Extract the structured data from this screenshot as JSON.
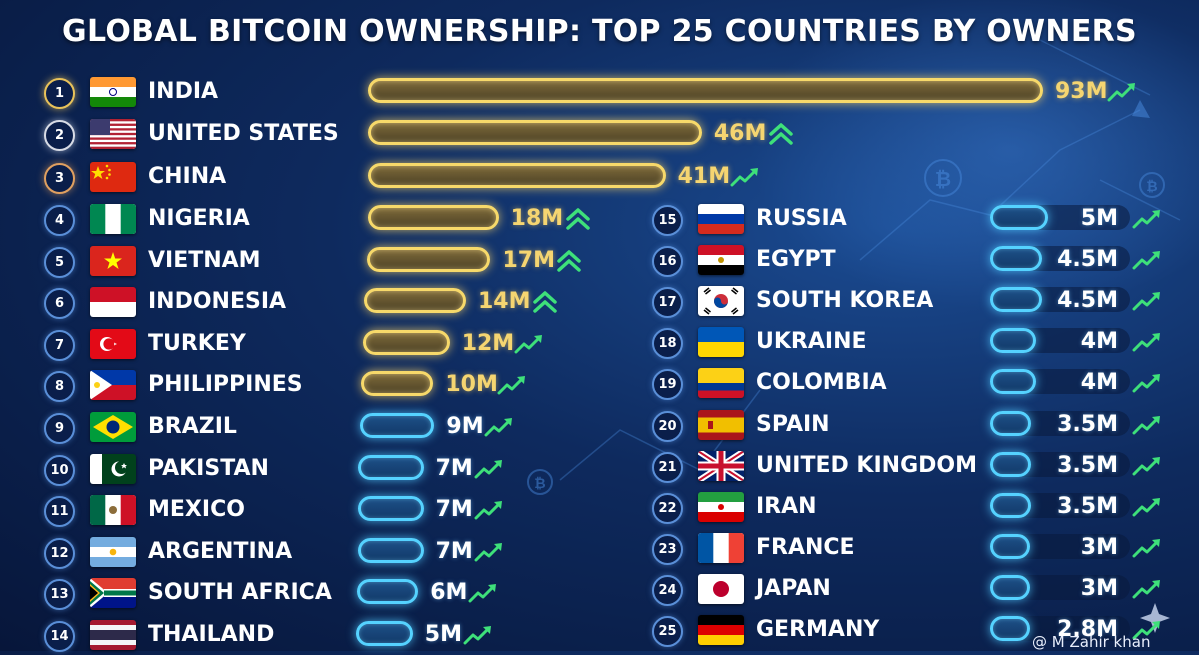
{
  "chart_data": {
    "type": "bar",
    "title": "GLOBAL BITCOIN OWNERSHIP: TOP 25 COUNTRIES BY OWNERS",
    "unit": "M",
    "xlim": [
      0,
      93
    ],
    "legend": "none",
    "grid": false,
    "rows": [
      {
        "rank": "1",
        "country": "INDIA",
        "flag": "india-flag",
        "value": 93,
        "label": "93M",
        "trend": "rising"
      },
      {
        "rank": "2",
        "country": "UNITED STATES",
        "flag": "usa-flag",
        "value": 46,
        "label": "46M",
        "trend": "double-up"
      },
      {
        "rank": "3",
        "country": "CHINA",
        "flag": "china-flag",
        "value": 41,
        "label": "41M",
        "trend": "rising"
      },
      {
        "rank": "4",
        "country": "NIGERIA",
        "flag": "nigeria-flag",
        "value": 18,
        "label": "18M",
        "trend": "double-up"
      },
      {
        "rank": "5",
        "country": "VIETNAM",
        "flag": "vietnam-flag",
        "value": 17,
        "label": "17M",
        "trend": "double-up"
      },
      {
        "rank": "6",
        "country": "INDONESIA",
        "flag": "indonesia-flag",
        "value": 14,
        "label": "14M",
        "trend": "double-up"
      },
      {
        "rank": "7",
        "country": "TURKEY",
        "flag": "turkey-flag",
        "value": 12,
        "label": "12M",
        "trend": "rising"
      },
      {
        "rank": "8",
        "country": "PHILIPPINES",
        "flag": "philippines-flag",
        "value": 10,
        "label": "10M",
        "trend": "rising"
      },
      {
        "rank": "9",
        "country": "BRAZIL",
        "flag": "brazil-flag",
        "value": 9,
        "label": "9M",
        "trend": "rising"
      },
      {
        "rank": "10",
        "country": "PAKISTAN",
        "flag": "pakistan-flag",
        "value": 7,
        "label": "7M",
        "trend": "rising"
      },
      {
        "rank": "11",
        "country": "MEXICO",
        "flag": "mexico-flag",
        "value": 7,
        "label": "7M",
        "trend": "rising"
      },
      {
        "rank": "12",
        "country": "ARGENTINA",
        "flag": "argentina-flag",
        "value": 7,
        "label": "7M",
        "trend": "rising"
      },
      {
        "rank": "13",
        "country": "SOUTH AFRICA",
        "flag": "south-africa-flag",
        "value": 6,
        "label": "6M",
        "trend": "rising"
      },
      {
        "rank": "14",
        "country": "THAILAND",
        "flag": "thailand-flag",
        "value": 5,
        "label": "5M",
        "trend": "rising"
      },
      {
        "rank": "15",
        "country": "RUSSIA",
        "flag": "russia-flag",
        "value": 5,
        "label": "5M",
        "trend": "rising"
      },
      {
        "rank": "16",
        "country": "EGYPT",
        "flag": "egypt-flag",
        "value": 4.5,
        "label": "4.5M",
        "trend": "rising"
      },
      {
        "rank": "17",
        "country": "SOUTH KOREA",
        "flag": "south-korea-flag",
        "value": 4.5,
        "label": "4.5M",
        "trend": "rising"
      },
      {
        "rank": "18",
        "country": "UKRAINE",
        "flag": "ukraine-flag",
        "value": 4,
        "label": "4M",
        "trend": "rising"
      },
      {
        "rank": "19",
        "country": "COLOMBIA",
        "flag": "colombia-flag",
        "value": 4,
        "label": "4M",
        "trend": "rising"
      },
      {
        "rank": "20",
        "country": "SPAIN",
        "flag": "spain-flag",
        "value": 3.5,
        "label": "3.5M",
        "trend": "rising"
      },
      {
        "rank": "21",
        "country": "UNITED KINGDOM",
        "flag": "uk-flag",
        "value": 3.5,
        "label": "3.5M",
        "trend": "rising"
      },
      {
        "rank": "22",
        "country": "IRAN",
        "flag": "iran-flag",
        "value": 3.5,
        "label": "3.5M",
        "trend": "rising"
      },
      {
        "rank": "23",
        "country": "FRANCE",
        "flag": "france-flag",
        "value": 3,
        "label": "3M",
        "trend": "rising"
      },
      {
        "rank": "24",
        "country": "JAPAN",
        "flag": "japan-flag",
        "value": 3,
        "label": "3M",
        "trend": "rising"
      },
      {
        "rank": "25",
        "country": "GERMANY",
        "flag": "germany-flag",
        "value": 2.8,
        "label": "2.8M",
        "trend": "rising"
      }
    ]
  },
  "colors": {
    "gold": "#f7d96a",
    "cyan": "#55d2ff",
    "trend_green": "#3ee07a",
    "background": "#0e2a5e"
  },
  "credit": "@ M Zahir khan",
  "icons": [
    "bitcoin-icon",
    "sparkle-icon",
    "trend-arrow-icon"
  ]
}
